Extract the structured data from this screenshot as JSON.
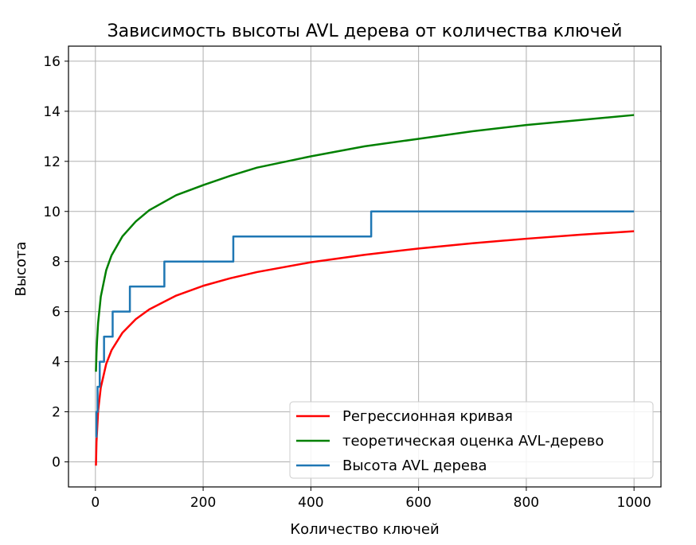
{
  "chart_data": {
    "type": "line",
    "title": "Зависимость высоты AVL дерева от количества ключей",
    "xlabel": "Количество ключей",
    "ylabel": "Высота",
    "xlim": [
      -50,
      1050
    ],
    "ylim": [
      -1,
      16.6
    ],
    "xticks": [
      0,
      200,
      400,
      600,
      800,
      1000
    ],
    "yticks": [
      0,
      2,
      4,
      6,
      8,
      10,
      12,
      14,
      16
    ],
    "grid": true,
    "legend_position": "lower-right",
    "series": [
      {
        "name": "Регрессионная кривая",
        "color": "#ff0000",
        "kind": "curve",
        "x": [
          1,
          2,
          5,
          10,
          20,
          30,
          50,
          75,
          100,
          150,
          200,
          250,
          300,
          400,
          500,
          600,
          700,
          800,
          900,
          1000
        ],
        "y": [
          -0.15,
          0.79,
          2.03,
          2.97,
          3.91,
          4.46,
          5.15,
          5.7,
          6.09,
          6.64,
          7.03,
          7.33,
          7.58,
          7.97,
          8.27,
          8.52,
          8.73,
          8.91,
          9.07,
          9.21
        ]
      },
      {
        "name": "теоретическая оценка AVL-дерево",
        "color": "#008000",
        "kind": "curve",
        "x": [
          1,
          2,
          3,
          5,
          10,
          20,
          30,
          50,
          75,
          100,
          150,
          200,
          250,
          300,
          400,
          500,
          600,
          700,
          800,
          900,
          1000
        ],
        "y": [
          3.6,
          4.33,
          4.83,
          5.55,
          6.6,
          7.65,
          8.25,
          9.0,
          9.6,
          10.05,
          10.65,
          11.05,
          11.42,
          11.75,
          12.2,
          12.6,
          12.9,
          13.2,
          13.45,
          13.65,
          13.85
        ]
      },
      {
        "name": "Высота AVL дерева",
        "color": "#1f77b4",
        "kind": "step",
        "x": [
          1,
          2,
          4,
          8,
          16,
          32,
          64,
          128,
          256,
          512,
          1000
        ],
        "y": [
          1,
          2,
          3,
          4,
          5,
          6,
          7,
          8,
          9,
          10,
          10
        ]
      }
    ]
  }
}
